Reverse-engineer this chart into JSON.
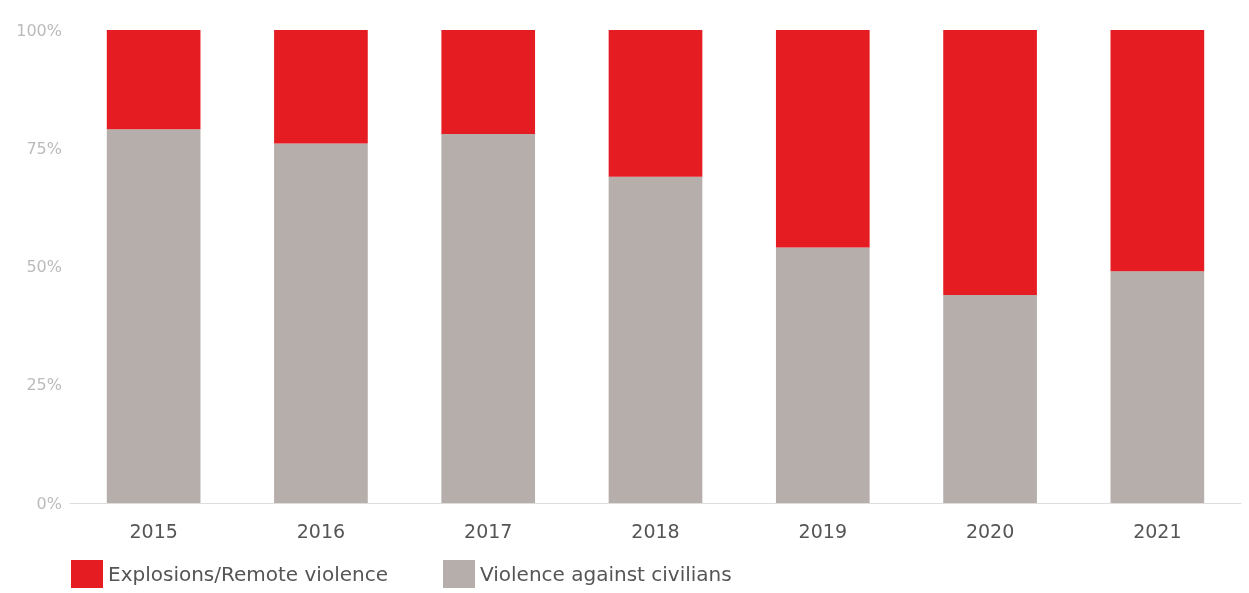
{
  "chart_data": {
    "type": "bar",
    "stacked": true,
    "categories": [
      "2015",
      "2016",
      "2017",
      "2018",
      "2019",
      "2020",
      "2021"
    ],
    "series": [
      {
        "name": "Violence against civilians",
        "color": "#b5aeab",
        "values": [
          79,
          76,
          78,
          69,
          54,
          44,
          49
        ]
      },
      {
        "name": "Explosions/Remote violence",
        "color": "#e61c23",
        "values": [
          21,
          24,
          22,
          31,
          46,
          56,
          51
        ]
      }
    ],
    "ylim": [
      0,
      100
    ],
    "yticks": [
      {
        "value": 0,
        "label": "0%"
      },
      {
        "value": 25,
        "label": "25%"
      },
      {
        "value": 50,
        "label": "50%"
      },
      {
        "value": 75,
        "label": "75%"
      },
      {
        "value": 100,
        "label": "100%"
      }
    ],
    "grid": false,
    "legend": "bottom left"
  }
}
